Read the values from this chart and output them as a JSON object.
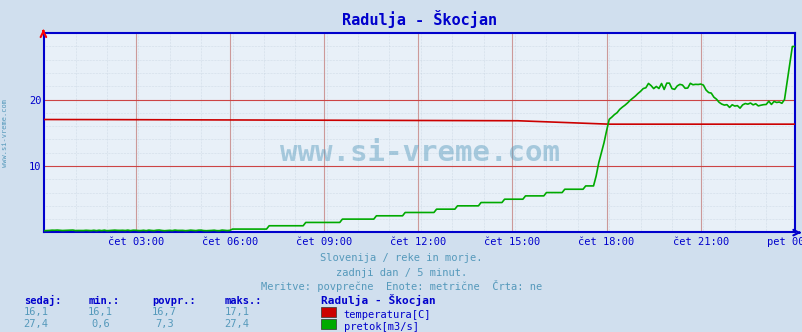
{
  "title": "Radulja - Škocjan",
  "background_color": "#d0dfee",
  "plot_background_color": "#e8f0f8",
  "grid_color_major_h": "#cc4444",
  "grid_color_major_v": "#cc9999",
  "grid_color_minor": "#aabbcc",
  "x_tick_labels": [
    "čet 03:00",
    "čet 06:00",
    "čet 09:00",
    "čet 12:00",
    "čet 15:00",
    "čet 18:00",
    "čet 21:00",
    "pet 00:00"
  ],
  "x_tick_fracs": [
    0.125,
    0.25,
    0.375,
    0.5,
    0.625,
    0.75,
    0.875,
    1.0
  ],
  "y_ticks_major": [
    10,
    20
  ],
  "ylim": [
    0,
    30
  ],
  "n_points": 288,
  "temp_color": "#cc0000",
  "flow_color": "#00aa00",
  "axis_color": "#0000cc",
  "title_color": "#0000cc",
  "text_color": "#5599bb",
  "subtitle_lines": [
    "Slovenija / reke in morje.",
    "zadnji dan / 5 minut.",
    "Meritve: povprečne  Enote: metrične  Črta: ne"
  ],
  "legend_header": "Radulja - Škocjan",
  "legend_items": [
    {
      "label": "temperatura[C]",
      "color": "#cc0000"
    },
    {
      "label": "pretok[m3/s]",
      "color": "#00aa00"
    }
  ],
  "stats_headers": [
    "sedaj:",
    "min.:",
    "povpr.:",
    "maks.:"
  ],
  "stats_temp": [
    "16,1",
    "16,1",
    "16,7",
    "17,1"
  ],
  "stats_flow": [
    "27,4",
    "0,6",
    "7,3",
    "27,4"
  ],
  "watermark_text": "www.si-vreme.com",
  "left_label": "www.si-vreme.com"
}
